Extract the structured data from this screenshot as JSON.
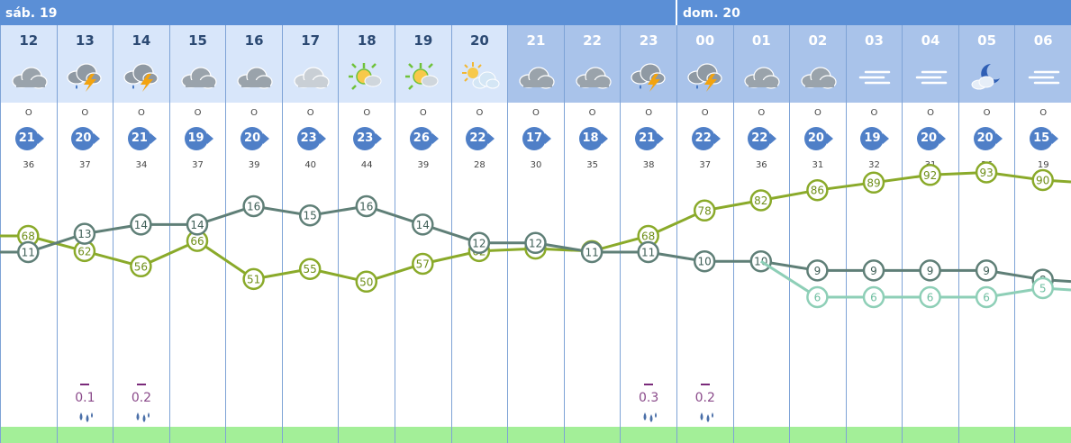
{
  "days": [
    {
      "label": "sáb. 19",
      "start_index": 0
    },
    {
      "label": "dom. 20",
      "start_index": 12
    }
  ],
  "hours": [
    {
      "hour": "12",
      "icon": "cloud-icon",
      "wind_dir": "O",
      "wind_speed": "21",
      "gust": "36",
      "rain": "",
      "night": false
    },
    {
      "hour": "13",
      "icon": "thunderstorm-icon",
      "wind_dir": "O",
      "wind_speed": "20",
      "gust": "37",
      "rain": "0.1",
      "night": false
    },
    {
      "hour": "14",
      "icon": "thunderstorm-icon",
      "wind_dir": "O",
      "wind_speed": "21",
      "gust": "34",
      "rain": "0.2",
      "night": false
    },
    {
      "hour": "15",
      "icon": "cloud-icon",
      "wind_dir": "O",
      "wind_speed": "19",
      "gust": "37",
      "rain": "",
      "night": false
    },
    {
      "hour": "16",
      "icon": "cloud-icon",
      "wind_dir": "O",
      "wind_speed": "20",
      "gust": "39",
      "rain": "",
      "night": false
    },
    {
      "hour": "17",
      "icon": "light-cloud-icon",
      "wind_dir": "O",
      "wind_speed": "23",
      "gust": "40",
      "rain": "",
      "night": false
    },
    {
      "hour": "18",
      "icon": "haze-sun-icon",
      "wind_dir": "O",
      "wind_speed": "23",
      "gust": "44",
      "rain": "",
      "night": false
    },
    {
      "hour": "19",
      "icon": "haze-sun-icon",
      "wind_dir": "O",
      "wind_speed": "26",
      "gust": "39",
      "rain": "",
      "night": false
    },
    {
      "hour": "20",
      "icon": "sun-cloud-icon",
      "wind_dir": "O",
      "wind_speed": "22",
      "gust": "28",
      "rain": "",
      "night": false
    },
    {
      "hour": "21",
      "icon": "cloud-icon",
      "wind_dir": "O",
      "wind_speed": "17",
      "gust": "30",
      "rain": "",
      "night": true
    },
    {
      "hour": "22",
      "icon": "cloud-icon",
      "wind_dir": "O",
      "wind_speed": "18",
      "gust": "35",
      "rain": "",
      "night": true
    },
    {
      "hour": "23",
      "icon": "thunderstorm-icon",
      "wind_dir": "O",
      "wind_speed": "21",
      "gust": "38",
      "rain": "0.3",
      "night": true
    },
    {
      "hour": "00",
      "icon": "thunderstorm-icon",
      "wind_dir": "O",
      "wind_speed": "22",
      "gust": "37",
      "rain": "0.2",
      "night": true
    },
    {
      "hour": "01",
      "icon": "cloud-icon",
      "wind_dir": "O",
      "wind_speed": "22",
      "gust": "36",
      "rain": "",
      "night": true
    },
    {
      "hour": "02",
      "icon": "cloud-icon",
      "wind_dir": "O",
      "wind_speed": "20",
      "gust": "31",
      "rain": "",
      "night": true
    },
    {
      "hour": "03",
      "icon": "fog-icon",
      "wind_dir": "O",
      "wind_speed": "19",
      "gust": "32",
      "rain": "",
      "night": true
    },
    {
      "hour": "04",
      "icon": "fog-icon",
      "wind_dir": "O",
      "wind_speed": "20",
      "gust": "31",
      "rain": "",
      "night": true
    },
    {
      "hour": "05",
      "icon": "moon-cloud-icon",
      "wind_dir": "O",
      "wind_speed": "20",
      "gust": "26",
      "rain": "",
      "night": true
    },
    {
      "hour": "06",
      "icon": "fog-icon",
      "wind_dir": "O",
      "wind_speed": "15",
      "gust": "19",
      "rain": "",
      "night": true
    }
  ],
  "chart_data": {
    "type": "line",
    "x": [
      "12",
      "13",
      "14",
      "15",
      "16",
      "17",
      "18",
      "19",
      "20",
      "21",
      "22",
      "23",
      "00",
      "01",
      "02",
      "03",
      "04",
      "05",
      "06"
    ],
    "ylim": [
      0,
      100
    ],
    "grid": false,
    "series": [
      {
        "key": "humidity",
        "color": "#8aaa2a",
        "values": [
          68,
          62,
          56,
          66,
          51,
          55,
          50,
          57,
          62,
          63,
          62,
          68,
          78,
          82,
          86,
          89,
          92,
          93,
          90
        ]
      },
      {
        "key": "temperature",
        "color": "#5f7f77",
        "values": [
          11,
          13,
          14,
          14,
          16,
          15,
          16,
          14,
          12,
          12,
          11,
          11,
          10,
          10,
          9,
          9,
          9,
          9,
          8
        ]
      },
      {
        "key": "dewpoint",
        "color": "#8ecfb7",
        "values": [
          null,
          null,
          null,
          null,
          null,
          null,
          null,
          null,
          null,
          null,
          null,
          null,
          null,
          null,
          6,
          6,
          6,
          6,
          5
        ]
      }
    ]
  },
  "colors": {
    "header_day": "#d8e6fa",
    "header_night": "#a9c3ea",
    "day_bar": "#5b8fd6",
    "wind_circle": "#4f7fc7",
    "footer": "#a3ef98",
    "rain_text": "#8a4a8a"
  }
}
